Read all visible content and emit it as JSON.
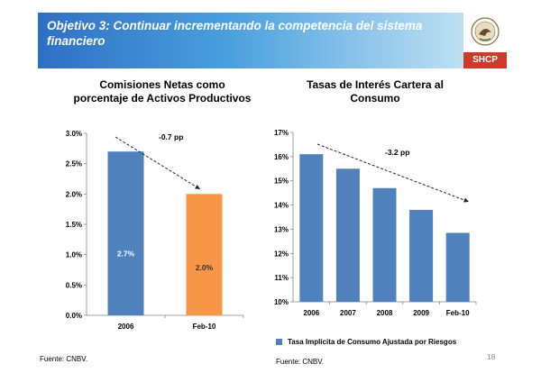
{
  "header": {
    "title": "Objetivo 3: Continuar incrementando la competencia del sistema financiero",
    "badge": "SHCP"
  },
  "colors": {
    "blue": "#4f81bd",
    "orange": "#f79646",
    "header_start": "#2f6fc4",
    "shcp_red": "#cf3a2a"
  },
  "icons": {
    "logo": "mexican-eagle-seal"
  },
  "chart_data": [
    {
      "type": "bar",
      "title": "Comisiones Netas como porcentaje de Activos Productivos",
      "categories": [
        "2006",
        "Feb-10"
      ],
      "values": [
        2.7,
        2.0
      ],
      "data_labels": [
        "2.7%",
        "2.0%"
      ],
      "bar_colors": [
        "#4f81bd",
        "#f79646"
      ],
      "yticks": [
        "0.0%",
        "0.5%",
        "1.0%",
        "1.5%",
        "2.0%",
        "2.5%",
        "3.0%"
      ],
      "ylim": [
        0,
        3.0
      ],
      "annotation": "-0.7 pp",
      "grid": false,
      "source": "Fuente: CNBV."
    },
    {
      "type": "bar",
      "title": "Tasas de Interés Cartera al Consumo",
      "categories": [
        "2006",
        "2007",
        "2008",
        "2009",
        "Feb-10"
      ],
      "values": [
        16.1,
        15.5,
        14.7,
        13.8,
        12.85
      ],
      "bar_colors": [
        "#4f81bd",
        "#4f81bd",
        "#4f81bd",
        "#4f81bd",
        "#4f81bd"
      ],
      "yticks": [
        "10%",
        "11%",
        "12%",
        "13%",
        "14%",
        "15%",
        "16%",
        "17%"
      ],
      "ylim": [
        10,
        17
      ],
      "annotation": "-3.2 pp",
      "legend": "Tasa Implícita de Consumo Ajustada por Riesgos",
      "legend_position": "bottom",
      "grid": false,
      "source": "Fuente: CNBV."
    }
  ],
  "page_number": "18"
}
